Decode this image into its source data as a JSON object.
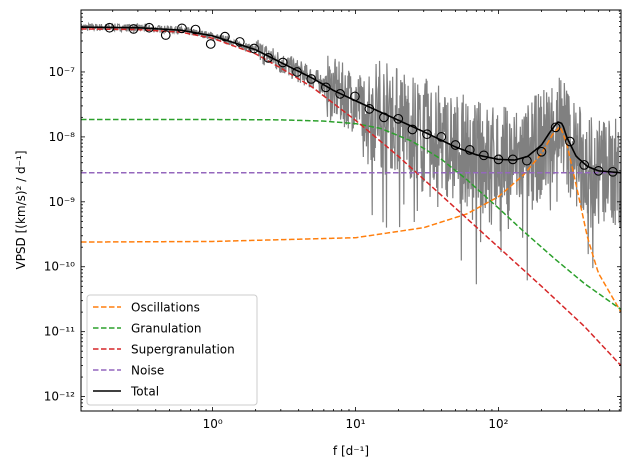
{
  "chart_data": {
    "type": "line",
    "xscale": "log",
    "yscale": "log",
    "xlabel": "f [d⁻¹]",
    "ylabel": "VPSD [(km/s)² / d⁻¹]",
    "xlim": [
      0.12,
      720
    ],
    "ylim": [
      6e-13,
      9e-07
    ],
    "x_ticks": [
      {
        "value": 1,
        "label": "10⁰"
      },
      {
        "value": 10,
        "label": "10¹"
      },
      {
        "value": 100,
        "label": "10²"
      }
    ],
    "y_ticks": [
      {
        "value": 1e-12,
        "label": "10⁻¹²"
      },
      {
        "value": 1e-11,
        "label": "10⁻¹¹"
      },
      {
        "value": 1e-10,
        "label": "10⁻¹⁰"
      },
      {
        "value": 1e-09,
        "label": "10⁻⁹"
      },
      {
        "value": 1e-08,
        "label": "10⁻⁸"
      },
      {
        "value": 1e-07,
        "label": "10⁻⁷"
      }
    ],
    "legend_position": "lower-left",
    "colors": {
      "Oscillations": "#ff7f0e",
      "Granulation": "#2ca02c",
      "Supergranulation": "#d62728",
      "Noise": "#9467bd",
      "Total": "#000000",
      "raw_psd": "#808080"
    },
    "series": [
      {
        "name": "Oscillations",
        "style": "dashed",
        "color": "#ff7f0e",
        "x": [
          0.12,
          1,
          10,
          30,
          60,
          100,
          150,
          200,
          240,
          270,
          300,
          350,
          420,
          500,
          720
        ],
        "y": [
          2.4e-10,
          2.45e-10,
          2.8e-10,
          4e-10,
          6.5e-10,
          1.2e-09,
          2.6e-09,
          5.5e-09,
          1.1e-08,
          1.45e-08,
          8e-09,
          1.8e-09,
          2.8e-10,
          8e-11,
          2e-11
        ]
      },
      {
        "name": "Granulation",
        "style": "dashed",
        "color": "#2ca02c",
        "x": [
          0.12,
          1,
          3,
          6,
          10,
          15,
          25,
          40,
          60,
          100,
          150,
          250,
          400,
          720
        ],
        "y": [
          1.85e-08,
          1.85e-08,
          1.83e-08,
          1.75e-08,
          1.6e-08,
          1.35e-08,
          8.5e-09,
          4.5e-09,
          2.2e-09,
          8e-10,
          3.5e-10,
          1.3e-10,
          5.5e-11,
          2.2e-11
        ]
      },
      {
        "name": "Supergranulation",
        "style": "dashed",
        "color": "#d62728",
        "x": [
          0.12,
          0.3,
          0.6,
          1,
          2,
          3,
          5,
          10,
          20,
          50,
          100,
          200,
          400,
          720
        ],
        "y": [
          4.6e-07,
          4.5e-07,
          4.1e-07,
          3.3e-07,
          1.9e-07,
          1.15e-07,
          5.8e-08,
          1.8e-08,
          5e-09,
          8e-10,
          2e-10,
          5e-11,
          1.2e-11,
          3e-12
        ]
      },
      {
        "name": "Noise",
        "style": "dashed",
        "color": "#9467bd",
        "x": [
          0.12,
          720
        ],
        "y": [
          2.8e-09,
          2.8e-09
        ]
      },
      {
        "name": "Total",
        "style": "solid",
        "color": "#000000",
        "x": [
          0.12,
          0.3,
          0.6,
          1,
          2,
          3,
          5,
          7,
          10,
          15,
          20,
          30,
          50,
          70,
          100,
          130,
          160,
          200,
          230,
          260,
          280,
          300,
          350,
          420,
          500,
          720
        ],
        "y": [
          4.9e-07,
          4.8e-07,
          4.4e-07,
          3.6e-07,
          2.2e-07,
          1.4e-07,
          8e-08,
          5.2e-08,
          3.6e-08,
          2.4e-08,
          1.8e-08,
          1.2e-08,
          7e-09,
          5.3e-09,
          4.5e-09,
          4.4e-09,
          5e-09,
          7.5e-09,
          1.2e-08,
          1.7e-08,
          1.6e-08,
          1e-08,
          5e-09,
          3.5e-09,
          3e-09,
          2.8e-09
        ]
      }
    ],
    "binned_points": {
      "marker": "open-circle",
      "x": [
        0.19,
        0.28,
        0.36,
        0.47,
        0.61,
        0.76,
        0.97,
        1.22,
        1.55,
        1.95,
        2.45,
        3.1,
        3.9,
        4.9,
        6.2,
        7.8,
        9.9,
        12.5,
        15.8,
        19.9,
        25,
        31.6,
        39.8,
        50,
        63,
        79,
        100,
        126,
        158,
        200,
        251,
        316,
        398,
        501,
        631
      ],
      "y": [
        4.8e-07,
        4.6e-07,
        4.8e-07,
        3.7e-07,
        4.7e-07,
        4.5e-07,
        2.7e-07,
        3.5e-07,
        2.9e-07,
        2.3e-07,
        1.65e-07,
        1.4e-07,
        1e-07,
        7.8e-08,
        5.8e-08,
        4.6e-08,
        4.2e-08,
        2.7e-08,
        2e-08,
        1.9e-08,
        1.3e-08,
        1.1e-08,
        1e-08,
        7.5e-09,
        6.3e-09,
        5.2e-09,
        4.5e-09,
        4.5e-09,
        4.3e-09,
        5.9e-09,
        1.4e-08,
        8.5e-09,
        3.7e-09,
        3e-09,
        2.9e-09
      ]
    }
  }
}
